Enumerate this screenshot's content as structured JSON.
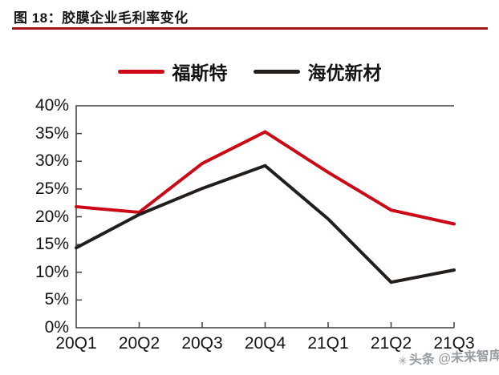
{
  "figure": {
    "title": "图 18：胶膜企业毛利率变化",
    "rule_color": "#a5161c"
  },
  "watermark": {
    "icon": "✳",
    "text": "头条 @未来智库"
  },
  "chart_data": {
    "type": "line",
    "title": "图 18：胶膜企业毛利率变化",
    "categories": [
      "20Q1",
      "20Q2",
      "20Q3",
      "20Q4",
      "21Q1",
      "21Q2",
      "21Q3"
    ],
    "series": [
      {
        "name": "福斯特",
        "color": "#cc0a17",
        "values": [
          21.8,
          20.8,
          29.6,
          35.3,
          28.0,
          21.2,
          18.7
        ]
      },
      {
        "name": "海优新材",
        "color": "#221e1c",
        "values": [
          14.4,
          20.4,
          25.1,
          29.2,
          19.6,
          8.2,
          10.4
        ]
      }
    ],
    "unit": "percent",
    "xlabel": "",
    "ylabel": "",
    "ylim": [
      0,
      40
    ],
    "ytick_step": 5,
    "ytick_labels": [
      "0%",
      "5%",
      "10%",
      "15%",
      "20%",
      "25%",
      "30%",
      "35%",
      "40%"
    ],
    "grid": false,
    "legend_position": "top-center"
  }
}
